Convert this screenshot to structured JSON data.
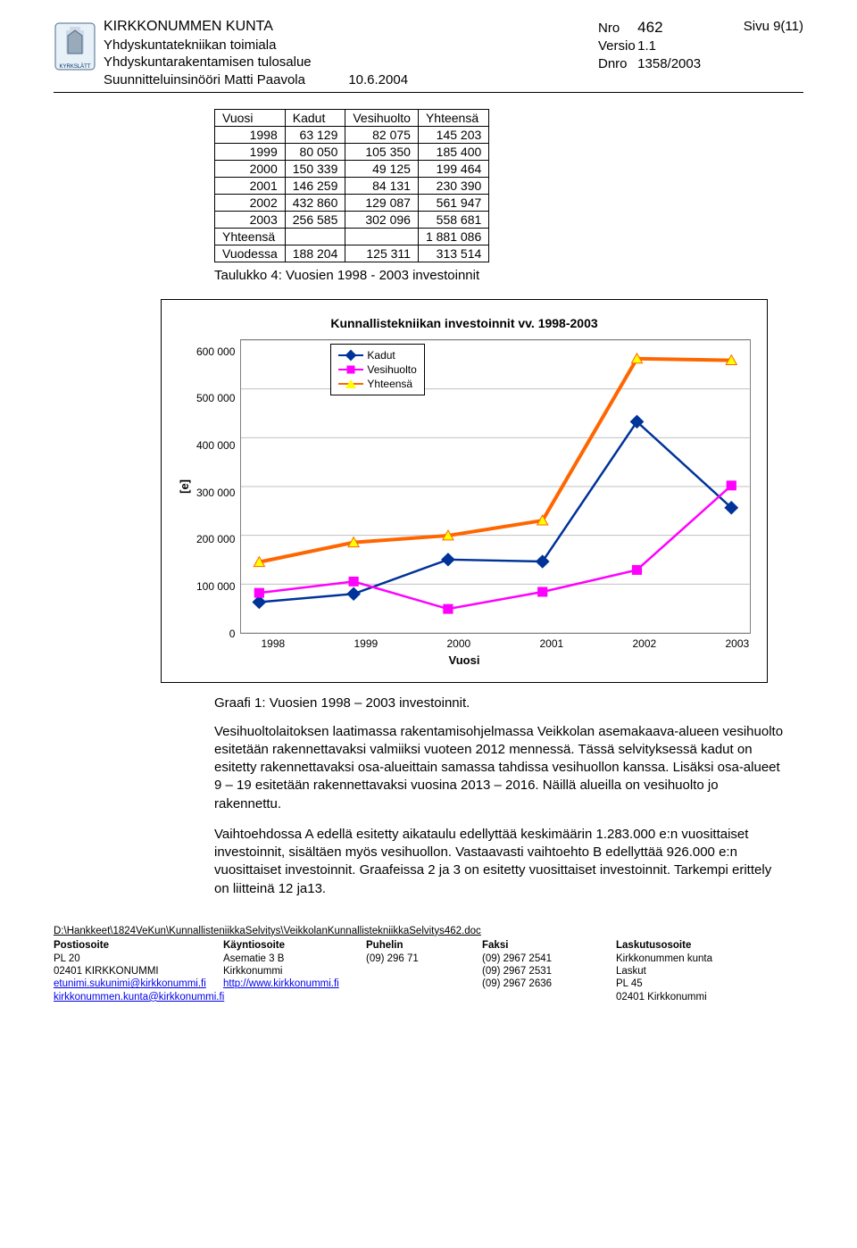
{
  "header": {
    "org": "KIRKKONUMMEN KUNTA",
    "dept1": "Yhdyskuntatekniikan toimiala",
    "dept2": "Yhdyskuntarakentamisen tulosalue",
    "role": "Suunnitteluinsinööri Matti Paavola",
    "date": "10.6.2004",
    "nro_label": "Nro",
    "nro": "462",
    "sivu_label": "Sivu",
    "sivu": "9(11)",
    "versio_label": "Versio",
    "versio": "1.1",
    "dnro_label": "Dnro",
    "dnro": "1358/2003"
  },
  "table": {
    "cols": [
      "Vuosi",
      "Kadut",
      "Vesihuolto",
      "Yhteensä"
    ],
    "rows": [
      [
        "1998",
        "63 129",
        "82 075",
        "145 203"
      ],
      [
        "1999",
        "80 050",
        "105 350",
        "185 400"
      ],
      [
        "2000",
        "150 339",
        "49 125",
        "199 464"
      ],
      [
        "2001",
        "146 259",
        "84 131",
        "230 390"
      ],
      [
        "2002",
        "432 860",
        "129 087",
        "561 947"
      ],
      [
        "2003",
        "256 585",
        "302 096",
        "558 681"
      ]
    ],
    "sum_rows": [
      [
        "Yhteensä",
        "",
        "",
        "1 881 086"
      ],
      [
        "Vuodessa",
        "188 204",
        "125 311",
        "313 514"
      ]
    ],
    "caption": "Taulukko 4: Vuosien 1998 - 2003 investoinnit"
  },
  "chart": {
    "title": "Kunnallistekniikan investoinnit vv. 1998-2003",
    "x_label": "Vuosi",
    "y_label": "[e]",
    "x_categories": [
      "1998",
      "1999",
      "2000",
      "2001",
      "2002",
      "2003"
    ],
    "y_ticks": [
      0,
      100000,
      200000,
      300000,
      400000,
      500000,
      600000
    ],
    "y_tick_labels": [
      "0",
      "100 000",
      "200 000",
      "300 000",
      "400 000",
      "500 000",
      "600 000"
    ],
    "ylim": [
      0,
      600000
    ],
    "series": [
      {
        "name": "Kadut",
        "color": "#003399",
        "marker": "diamond",
        "marker_fill": "#003399",
        "values": [
          63129,
          80050,
          150339,
          146259,
          432860,
          256585
        ]
      },
      {
        "name": "Vesihuolto",
        "color": "#ff00ff",
        "marker": "square",
        "marker_fill": "#ff00ff",
        "values": [
          82075,
          105350,
          49125,
          84131,
          129087,
          302096
        ]
      },
      {
        "name": "Yhteensä",
        "color": "#ff6600",
        "marker": "triangle",
        "marker_fill": "#ffff00",
        "values": [
          145203,
          185400,
          199464,
          230390,
          561947,
          558681
        ],
        "line_width": 4
      }
    ],
    "grid_color": "#c0c0c0",
    "plot_bg": "#ffffff",
    "legend_position": "upper-left-inside"
  },
  "caption2": "Graafi 1: Vuosien 1998 – 2003 investoinnit.",
  "para1": "Vesihuoltolaitoksen laatimassa rakentamisohjelmassa Veikkolan asemakaava-alueen vesihuolto esitetään rakennettavaksi valmiiksi vuoteen 2012 mennessä. Tässä selvityksessä kadut on esitetty rakennettavaksi osa-alueittain samassa tahdissa vesihuollon kanssa. Lisäksi osa-alueet 9 – 19 esitetään rakennettavaksi vuosina 2013 – 2016. Näillä alueilla on vesihuolto jo rakennettu.",
  "para2": "Vaihtoehdossa A edellä esitetty aikataulu edellyttää keskimäärin 1.283.000 e:n vuosittaiset investoinnit, sisältäen myös vesihuollon. Vastaavasti vaihtoehto B edellyttää 926.000 e:n vuosittaiset investoinnit. Graafeissa 2 ja 3 on esitetty vuosittaiset investoinnit. Tarkempi erittely on liitteinä 12 ja13.",
  "footer": {
    "path": "D:\\Hankkeet\\1824VeKun\\KunnallisteniikkaSelvitys\\VeikkolanKunnallistekniikkaSelvitys462.doc",
    "cols": [
      "Postiosoite",
      "Käyntiosoite",
      "Puhelin",
      "Faksi",
      "Laskutusosoite"
    ],
    "r1": [
      "PL 20",
      "Asematie 3 B",
      "(09) 296 71",
      "(09) 2967 2541",
      "Kirkkonummen kunta"
    ],
    "r2": [
      "02401 KIRKKONUMMI",
      "Kirkkonummi",
      "",
      "(09) 2967 2531",
      "Laskut"
    ],
    "r3": [
      "etunimi.sukunimi@kirkkonummi.fi",
      "http://www.kirkkonummi.fi",
      "",
      "(09) 2967 2636",
      "PL 45"
    ],
    "r4": [
      "kirkkonummen.kunta@kirkkonummi.fi",
      "",
      "",
      "",
      "02401 Kirkkonummi"
    ]
  }
}
